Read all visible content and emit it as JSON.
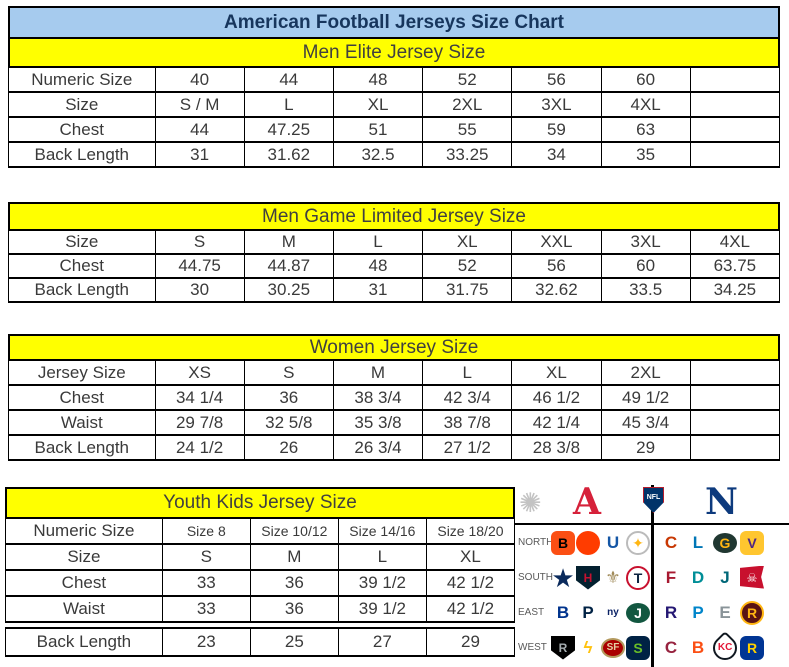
{
  "title": "American Football Jerseys Size Chart",
  "colors": {
    "title_bg": "#A6CBEE",
    "title_text": "#17365D",
    "section_bg": "#FFFF00",
    "section_text": "#404040",
    "cell_text": "#3A3A3A",
    "border": "#000000",
    "afc_red": "#D6213A",
    "nfc_blue": "#0D3A7D"
  },
  "tables": [
    {
      "header": "Men Elite Jersey Size",
      "rows": [
        {
          "label": "Numeric Size",
          "cells": [
            "40",
            "44",
            "48",
            "52",
            "56",
            "60",
            ""
          ]
        },
        {
          "label": "Size",
          "cells": [
            "S / M",
            "L",
            "XL",
            "2XL",
            "3XL",
            "4XL",
            ""
          ]
        },
        {
          "label": "Chest",
          "cells": [
            "44",
            "47.25",
            "51",
            "55",
            "59",
            "63",
            ""
          ]
        },
        {
          "label": "Back Length",
          "cells": [
            "31",
            "31.62",
            "32.5",
            "33.25",
            "34",
            "35",
            ""
          ]
        }
      ]
    },
    {
      "header": "Men Game Limited Jersey Size",
      "rows": [
        {
          "label": "Size",
          "cells": [
            "S",
            "M",
            "L",
            "XL",
            "XXL",
            "3XL",
            "4XL"
          ]
        },
        {
          "label": "Chest",
          "cells": [
            "44.75",
            "44.87",
            "48",
            "52",
            "56",
            "60",
            "63.75"
          ]
        },
        {
          "label": "Back Length",
          "cells": [
            "30",
            "30.25",
            "31",
            "31.75",
            "32.62",
            "33.5",
            "34.25"
          ]
        }
      ]
    },
    {
      "header": "Women Jersey Size",
      "rows": [
        {
          "label": "Jersey Size",
          "cells": [
            "XS",
            "S",
            "M",
            "L",
            "XL",
            "2XL",
            ""
          ]
        },
        {
          "label": "Chest",
          "cells": [
            "34 1/4",
            "36",
            "38 3/4",
            "42 3/4",
            "46 1/2",
            "49 1/2",
            ""
          ]
        },
        {
          "label": "Waist",
          "cells": [
            "29 7/8",
            "32 5/8",
            "35 3/8",
            "38 7/8",
            "42 1/4",
            "45 3/4",
            ""
          ]
        },
        {
          "label": "Back Length",
          "cells": [
            "24 1/2",
            "26",
            "26 3/4",
            "27 1/2",
            "28 3/8",
            "29",
            ""
          ]
        }
      ]
    },
    {
      "header": "Youth Kids Jersey Size",
      "rows": [
        {
          "label": "Numeric Size",
          "cells": [
            "Size 8",
            "Size 10/12",
            "Size 14/16",
            "Size 18/20"
          ],
          "small_cells": true
        },
        {
          "label": "Size",
          "cells": [
            "S",
            "M",
            "L",
            "XL"
          ]
        },
        {
          "label": "Chest",
          "cells": [
            "33",
            "36",
            "39 1/2",
            "42 1/2"
          ]
        },
        {
          "label": "Waist",
          "cells": [
            "33",
            "36",
            "39 1/2",
            "42 1/2"
          ]
        },
        {
          "label": "Back Length",
          "cells": [
            "23",
            "25",
            "27",
            "29"
          ],
          "gap_before": true
        }
      ]
    }
  ],
  "nfl_panel": {
    "starburst_glyph": "✺",
    "afc_letter": "A",
    "shield_text": "NFL",
    "nfc_letter": "N",
    "divisions": [
      {
        "name": "NORTH",
        "afc": [
          {
            "team": "Cincinnati Bengals",
            "glyph": "B",
            "bg": "#FB4F14",
            "fg": "#000000",
            "shape": "round"
          },
          {
            "team": "Cleveland Browns",
            "glyph": "",
            "bg": "#FF3C00",
            "fg": "#FFFFFF",
            "shape": "circle"
          },
          {
            "team": "Indianapolis Colts",
            "glyph": "U",
            "bg": "transparent",
            "fg": "#1456A5",
            "shape": "plain"
          },
          {
            "team": "Pittsburgh Steelers",
            "glyph": "✦",
            "bg": "#FFFFFF",
            "fg": "#FFB612",
            "shape": "circle",
            "border": "#BBBBBB"
          }
        ],
        "nfc": [
          {
            "team": "Chicago Bears",
            "glyph": "C",
            "bg": "transparent",
            "fg": "#C83803",
            "shape": "plain"
          },
          {
            "team": "Detroit Lions",
            "glyph": "L",
            "bg": "transparent",
            "fg": "#0076B6",
            "shape": "plain"
          },
          {
            "team": "Green Bay Packers",
            "glyph": "G",
            "bg": "#203731",
            "fg": "#FFB612",
            "shape": "oval"
          },
          {
            "team": "Minnesota Vikings",
            "glyph": "V",
            "bg": "#FFC62F",
            "fg": "#4F2683",
            "shape": "round"
          }
        ]
      },
      {
        "name": "SOUTH",
        "afc": [
          {
            "team": "Dallas Cowboys",
            "glyph": "★",
            "bg": "transparent",
            "fg": "#0A2A5C",
            "shape": "star"
          },
          {
            "team": "Houston Texans",
            "glyph": "H",
            "bg": "#03202F",
            "fg": "#C41230",
            "shape": "shield"
          },
          {
            "team": "New Orleans Saints",
            "glyph": "⚜",
            "bg": "transparent",
            "fg": "#A08A58",
            "shape": "plain"
          },
          {
            "team": "Tennessee Titans",
            "glyph": "T",
            "bg": "#FFFFFF",
            "fg": "#0C2340",
            "shape": "circle",
            "border": "#C8102E"
          }
        ],
        "nfc": [
          {
            "team": "Atlanta Falcons",
            "glyph": "F",
            "bg": "transparent",
            "fg": "#A71930",
            "shape": "plain"
          },
          {
            "team": "Miami Dolphins",
            "glyph": "D",
            "bg": "transparent",
            "fg": "#008E97",
            "shape": "plain"
          },
          {
            "team": "Jacksonville Jaguars",
            "glyph": "J",
            "bg": "transparent",
            "fg": "#006778",
            "shape": "plain"
          },
          {
            "team": "Tampa Bay Buccaneers",
            "glyph": "☠",
            "bg": "#C8102E",
            "fg": "#FFFFFF",
            "shape": "flag"
          }
        ]
      },
      {
        "name": "EAST",
        "afc": [
          {
            "team": "Buffalo Bills",
            "glyph": "B",
            "bg": "transparent",
            "fg": "#00338D",
            "shape": "plain"
          },
          {
            "team": "New England Patriots",
            "glyph": "P",
            "bg": "transparent",
            "fg": "#002244",
            "shape": "plain"
          },
          {
            "team": "New York Giants",
            "glyph": "ny",
            "bg": "transparent",
            "fg": "#0B2265",
            "shape": "plain"
          },
          {
            "team": "New York Jets",
            "glyph": "J",
            "bg": "#125740",
            "fg": "#FFFFFF",
            "shape": "oval"
          }
        ],
        "nfc": [
          {
            "team": "Baltimore Ravens",
            "glyph": "R",
            "bg": "transparent",
            "fg": "#241773",
            "shape": "plain"
          },
          {
            "team": "Carolina Panthers",
            "glyph": "P",
            "bg": "transparent",
            "fg": "#0085CA",
            "shape": "plain"
          },
          {
            "team": "Philadelphia Eagles",
            "glyph": "E",
            "bg": "transparent",
            "fg": "#8A9499",
            "shape": "plain"
          },
          {
            "team": "Washington Redskins",
            "glyph": "R",
            "bg": "#5A1414",
            "fg": "#FFB612",
            "shape": "circle",
            "border": "#FFB612"
          }
        ]
      },
      {
        "name": "WEST",
        "afc": [
          {
            "team": "Oakland Raiders",
            "glyph": "R",
            "bg": "#000000",
            "fg": "#A5ACAF",
            "shape": "shield"
          },
          {
            "team": "San Diego Chargers",
            "glyph": "ϟ",
            "bg": "transparent",
            "fg": "#FFC20E",
            "shape": "plain"
          },
          {
            "team": "San Francisco 49ers",
            "glyph": "SF",
            "bg": "#AA0000",
            "fg": "#E6D0A3",
            "shape": "oval",
            "border": "#B3995D"
          },
          {
            "team": "Seattle Seahawks",
            "glyph": "S",
            "bg": "#002244",
            "fg": "#69BE28",
            "shape": "round"
          }
        ],
        "nfc": [
          {
            "team": "Arizona Cardinals",
            "glyph": "C",
            "bg": "transparent",
            "fg": "#97233F",
            "shape": "plain"
          },
          {
            "team": "Denver Broncos",
            "glyph": "B",
            "bg": "transparent",
            "fg": "#FB4F14",
            "shape": "plain"
          },
          {
            "team": "Kansas City Chiefs",
            "glyph": "KC",
            "bg": "#FFFFFF",
            "fg": "#E31837",
            "shape": "arrow",
            "border": "#101820"
          },
          {
            "team": "St. Louis Rams",
            "glyph": "R",
            "bg": "#003594",
            "fg": "#FFD100",
            "shape": "round"
          }
        ]
      }
    ]
  }
}
